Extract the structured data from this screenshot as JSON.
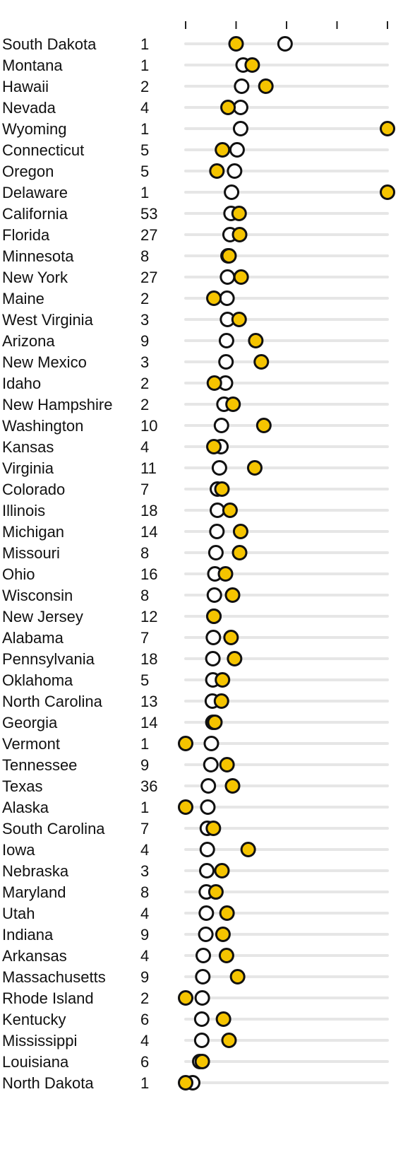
{
  "chart_data": {
    "type": "scatter",
    "colors": {
      "open": "#ffffff",
      "filled": "#f5c400",
      "stroke": "#111111",
      "track": "#e6e6e6"
    },
    "xlim": [
      0,
      4
    ],
    "ticks": [
      0,
      1,
      2,
      3,
      4
    ],
    "rows": [
      {
        "state": "South Dakota",
        "count": "1",
        "open": 1.97,
        "filled": 1.0
      },
      {
        "state": "Montana",
        "count": "1",
        "open": 1.14,
        "filled": 1.32
      },
      {
        "state": "Hawaii",
        "count": "2",
        "open": 1.11,
        "filled": 1.59
      },
      {
        "state": "Nevada",
        "count": "4",
        "open": 1.09,
        "filled": 0.84
      },
      {
        "state": "Wyoming",
        "count": "1",
        "open": 1.09,
        "filled": 4.0
      },
      {
        "state": "Connecticut",
        "count": "5",
        "open": 1.02,
        "filled": 0.73
      },
      {
        "state": "Oregon",
        "count": "5",
        "open": 0.97,
        "filled": 0.62
      },
      {
        "state": "Delaware",
        "count": "1",
        "open": 0.91,
        "filled": 4.0
      },
      {
        "state": "California",
        "count": "53",
        "open": 0.9,
        "filled": 1.06
      },
      {
        "state": "Florida",
        "count": "27",
        "open": 0.88,
        "filled": 1.07
      },
      {
        "state": "Minnesota",
        "count": "8",
        "open": 0.84,
        "filled": 0.86
      },
      {
        "state": "New York",
        "count": "27",
        "open": 0.83,
        "filled": 1.1
      },
      {
        "state": "Maine",
        "count": "2",
        "open": 0.82,
        "filled": 0.56
      },
      {
        "state": "West Virginia",
        "count": "3",
        "open": 0.83,
        "filled": 1.06
      },
      {
        "state": "Arizona",
        "count": "9",
        "open": 0.81,
        "filled": 1.39
      },
      {
        "state": "New Mexico",
        "count": "3",
        "open": 0.8,
        "filled": 1.5
      },
      {
        "state": "Idaho",
        "count": "2",
        "open": 0.79,
        "filled": 0.57
      },
      {
        "state": "New Hampshire",
        "count": "2",
        "open": 0.76,
        "filled": 0.94
      },
      {
        "state": "Washington",
        "count": "10",
        "open": 0.71,
        "filled": 1.55
      },
      {
        "state": "Kansas",
        "count": "4",
        "open": 0.7,
        "filled": 0.56
      },
      {
        "state": "Virginia",
        "count": "11",
        "open": 0.67,
        "filled": 1.37
      },
      {
        "state": "Colorado",
        "count": "7",
        "open": 0.63,
        "filled": 0.72
      },
      {
        "state": "Illinois",
        "count": "18",
        "open": 0.63,
        "filled": 0.88
      },
      {
        "state": "Michigan",
        "count": "14",
        "open": 0.62,
        "filled": 1.09
      },
      {
        "state": "Missouri",
        "count": "8",
        "open": 0.6,
        "filled": 1.07
      },
      {
        "state": "Ohio",
        "count": "16",
        "open": 0.58,
        "filled": 0.79
      },
      {
        "state": "Wisconsin",
        "count": "8",
        "open": 0.57,
        "filled": 0.93
      },
      {
        "state": "New Jersey",
        "count": "12",
        "open": 0.56,
        "filled": 0.56
      },
      {
        "state": "Alabama",
        "count": "7",
        "open": 0.55,
        "filled": 0.9
      },
      {
        "state": "Pennsylvania",
        "count": "18",
        "open": 0.54,
        "filled": 0.97
      },
      {
        "state": "Oklahoma",
        "count": "5",
        "open": 0.54,
        "filled": 0.73
      },
      {
        "state": "North Carolina",
        "count": "13",
        "open": 0.53,
        "filled": 0.71
      },
      {
        "state": "Georgia",
        "count": "14",
        "open": 0.54,
        "filled": 0.58
      },
      {
        "state": "Vermont",
        "count": "1",
        "open": 0.51,
        "filled": 0.0
      },
      {
        "state": "Tennessee",
        "count": "9",
        "open": 0.5,
        "filled": 0.82
      },
      {
        "state": "Texas",
        "count": "36",
        "open": 0.45,
        "filled": 0.93
      },
      {
        "state": "Alaska",
        "count": "1",
        "open": 0.44,
        "filled": 0.0
      },
      {
        "state": "South Carolina",
        "count": "7",
        "open": 0.43,
        "filled": 0.55
      },
      {
        "state": "Iowa",
        "count": "4",
        "open": 0.43,
        "filled": 1.24
      },
      {
        "state": "Nebraska",
        "count": "3",
        "open": 0.42,
        "filled": 0.72
      },
      {
        "state": "Maryland",
        "count": "8",
        "open": 0.41,
        "filled": 0.6
      },
      {
        "state": "Utah",
        "count": "4",
        "open": 0.41,
        "filled": 0.82
      },
      {
        "state": "Indiana",
        "count": "9",
        "open": 0.4,
        "filled": 0.74
      },
      {
        "state": "Arkansas",
        "count": "4",
        "open": 0.35,
        "filled": 0.81
      },
      {
        "state": "Massachusetts",
        "count": "9",
        "open": 0.34,
        "filled": 1.03
      },
      {
        "state": "Rhode Island",
        "count": "2",
        "open": 0.33,
        "filled": 0.0
      },
      {
        "state": "Kentucky",
        "count": "6",
        "open": 0.32,
        "filled": 0.75
      },
      {
        "state": "Mississippi",
        "count": "4",
        "open": 0.32,
        "filled": 0.86
      },
      {
        "state": "Louisiana",
        "count": "6",
        "open": 0.28,
        "filled": 0.33
      },
      {
        "state": "North Dakota",
        "count": "1",
        "open": 0.14,
        "filled": 0.0
      }
    ]
  }
}
